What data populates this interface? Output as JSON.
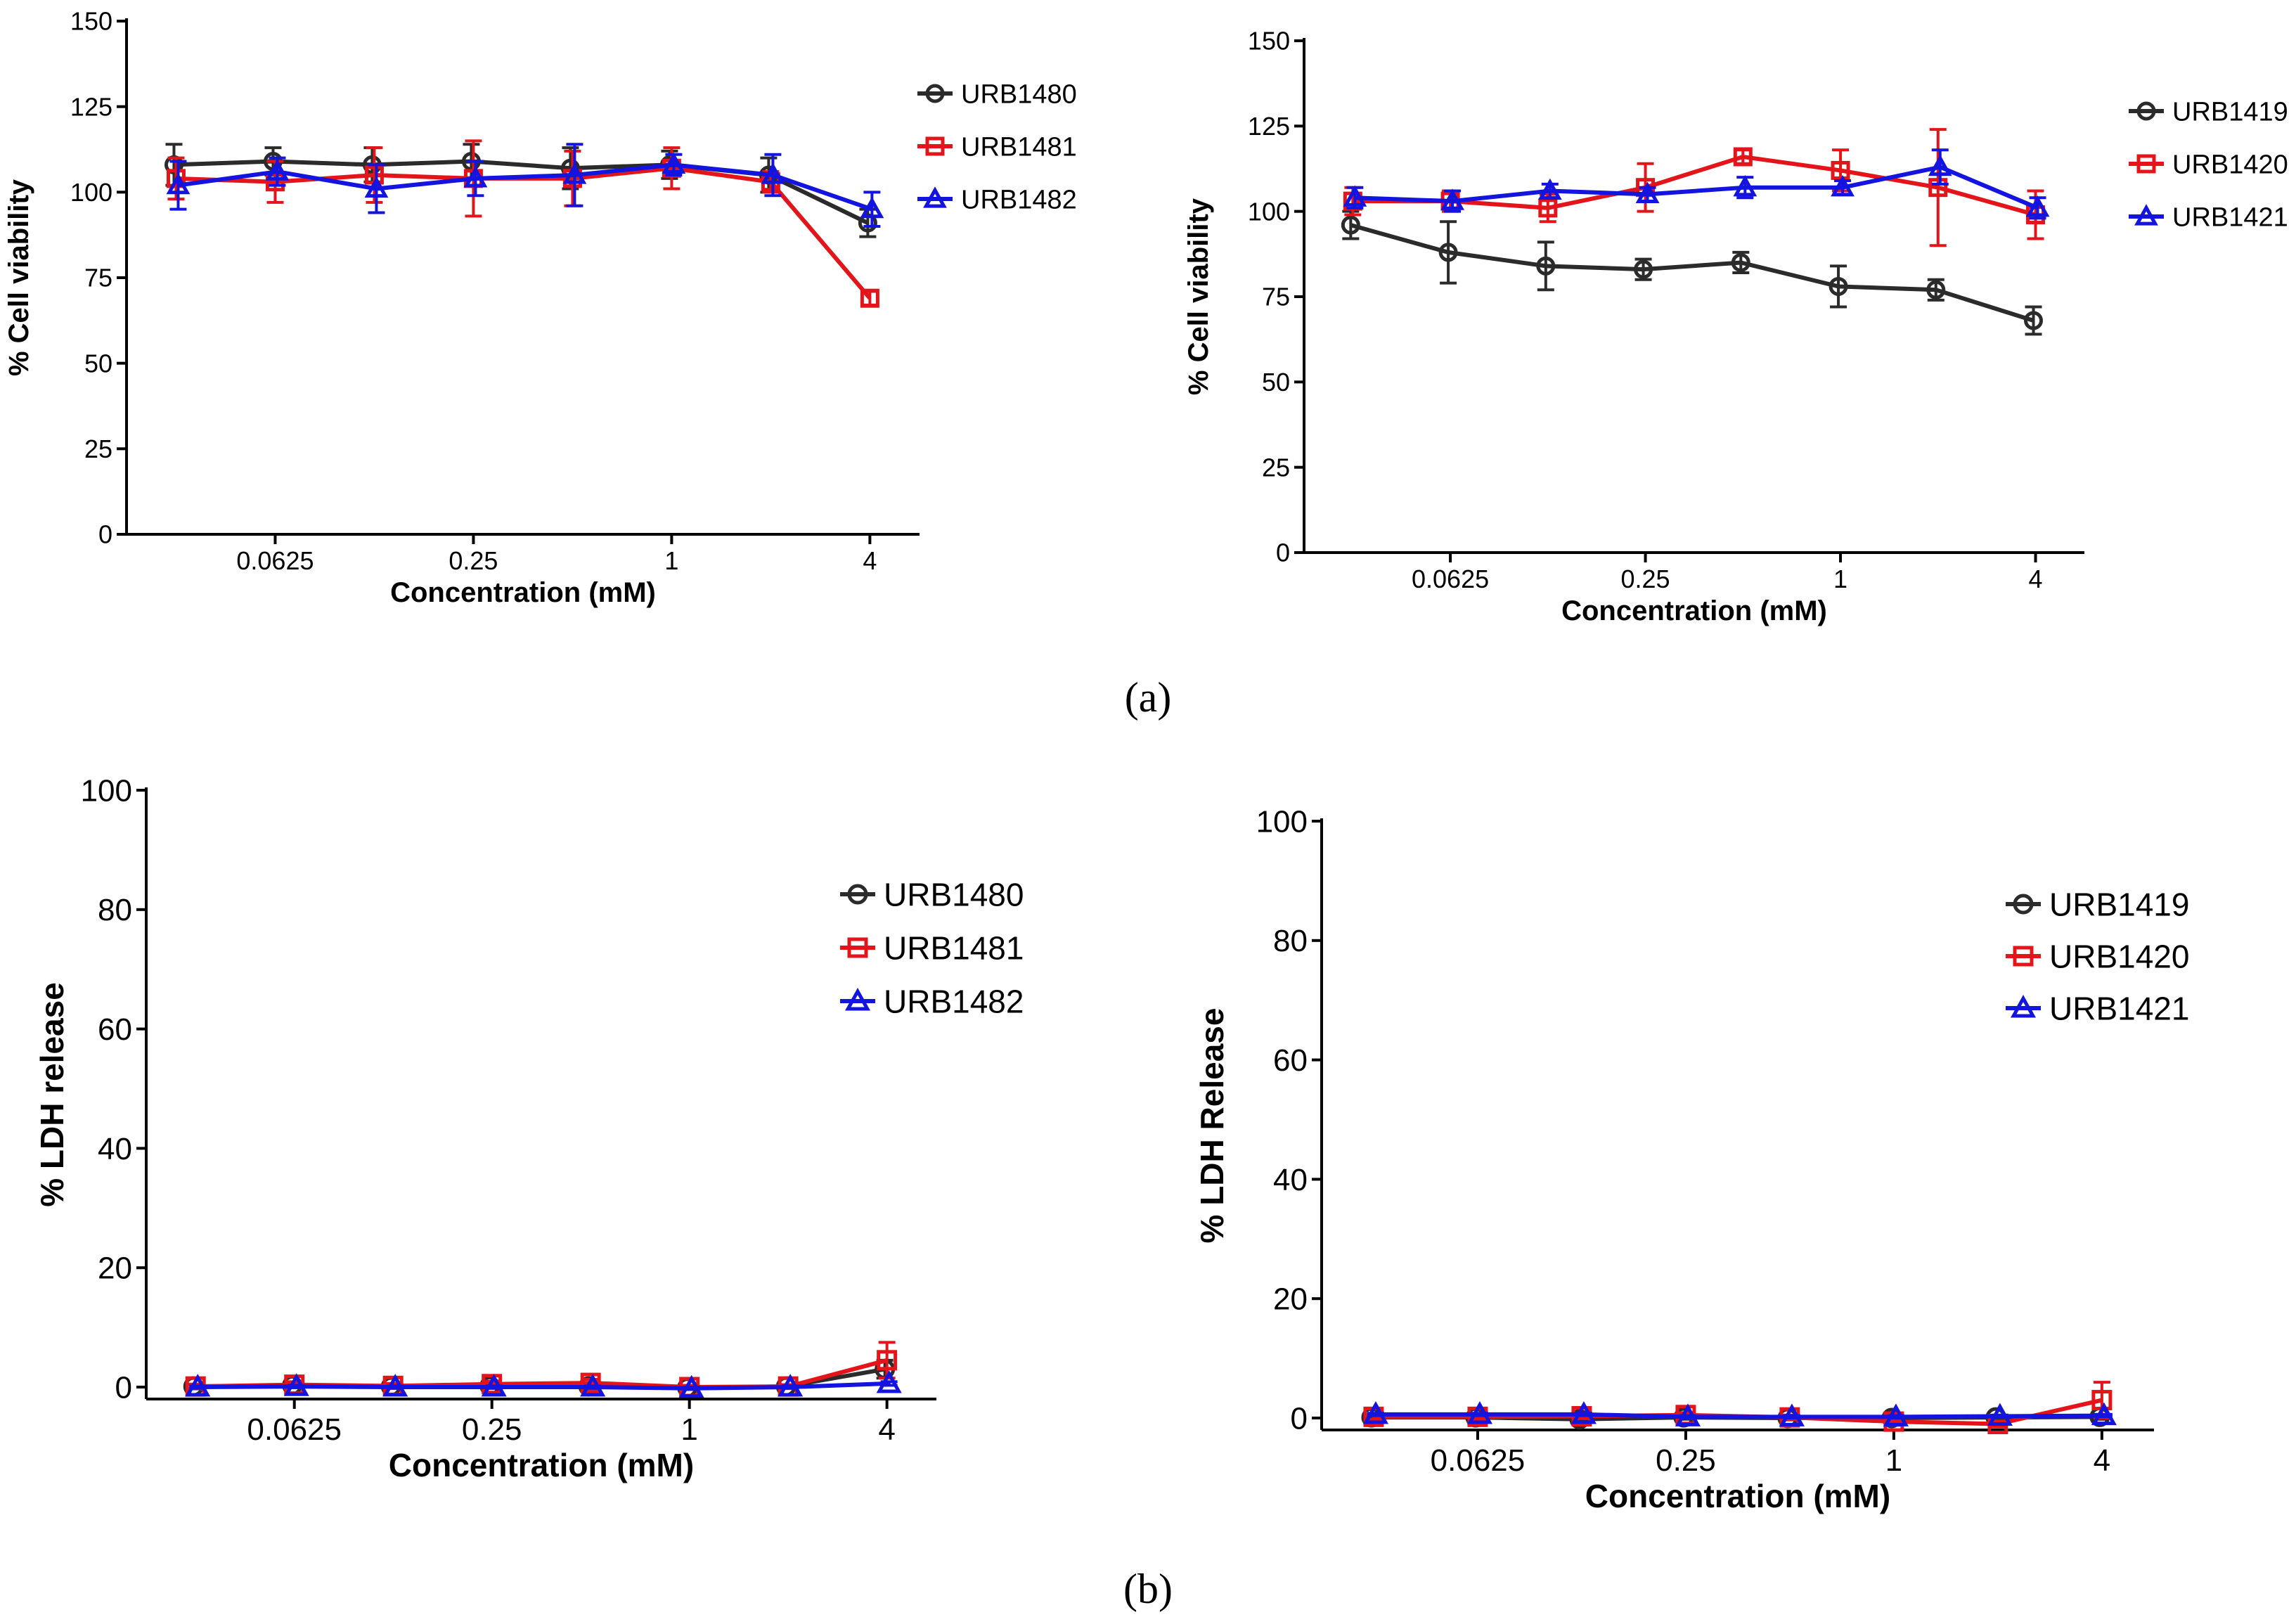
{
  "figure": {
    "panel_a": "(a)",
    "panel_b": "(b)"
  },
  "chart_data": [
    {
      "id": "viab-1480",
      "panel": "a",
      "type": "line",
      "title": "",
      "xlabel": "Concentration (mM)",
      "ylabel": "% Cell viability",
      "xscale": "log2",
      "xlim": [
        0.0221,
        5.66
      ],
      "xticks": [
        0.0625,
        0.25,
        1,
        4
      ],
      "xtick_labels": [
        "0.0625",
        "0.25",
        "1",
        "4"
      ],
      "ylim": [
        0,
        150
      ],
      "yticks": [
        0,
        25,
        50,
        75,
        100,
        125,
        150
      ],
      "ytick_labels": [
        "0",
        "25",
        "50",
        "75",
        "100",
        "125",
        "150"
      ],
      "legend_position": "top-right",
      "series": [
        {
          "name": "URB1480",
          "color": "#2b2b2b",
          "marker": "circle",
          "x": [
            0.03125,
            0.0625,
            0.125,
            0.25,
            0.5,
            1,
            2,
            4
          ],
          "values": [
            108,
            109,
            108,
            109,
            107,
            108,
            105,
            91
          ],
          "errors": [
            6,
            4,
            5,
            5,
            6,
            4,
            5,
            4
          ]
        },
        {
          "name": "URB1481",
          "color": "#e3151a",
          "marker": "square",
          "x": [
            0.03125,
            0.0625,
            0.125,
            0.25,
            0.5,
            1,
            2,
            4
          ],
          "values": [
            104,
            103,
            105,
            104,
            104,
            107,
            103,
            69
          ],
          "errors": [
            6,
            6,
            8,
            11,
            8,
            6,
            3,
            2
          ]
        },
        {
          "name": "URB1482",
          "color": "#1414e0",
          "marker": "triangle",
          "x": [
            0.03125,
            0.0625,
            0.125,
            0.25,
            0.5,
            1,
            2,
            4
          ],
          "values": [
            102,
            106,
            101,
            104,
            105,
            108,
            105,
            95
          ],
          "errors": [
            7,
            4,
            7,
            5,
            9,
            3,
            6,
            5
          ]
        }
      ]
    },
    {
      "id": "viab-1419",
      "panel": "a",
      "type": "line",
      "title": "",
      "xlabel": "Concentration (mM)",
      "ylabel": "% Cell viability",
      "xscale": "log2",
      "xlim": [
        0.0221,
        5.66
      ],
      "xticks": [
        0.0625,
        0.25,
        1,
        4
      ],
      "xtick_labels": [
        "0.0625",
        "0.25",
        "1",
        "4"
      ],
      "ylim": [
        0,
        150
      ],
      "yticks": [
        0,
        25,
        50,
        75,
        100,
        125,
        150
      ],
      "ytick_labels": [
        "0",
        "25",
        "50",
        "75",
        "100",
        "125",
        "150"
      ],
      "legend_position": "top-right",
      "series": [
        {
          "name": "URB1419",
          "color": "#2b2b2b",
          "marker": "circle",
          "x": [
            0.03125,
            0.0625,
            0.125,
            0.25,
            0.5,
            1,
            2,
            4
          ],
          "values": [
            96,
            88,
            84,
            83,
            85,
            78,
            77,
            68
          ],
          "errors": [
            4,
            9,
            7,
            3,
            3,
            6,
            3,
            4
          ]
        },
        {
          "name": "URB1420",
          "color": "#e3151a",
          "marker": "square",
          "x": [
            0.03125,
            0.0625,
            0.125,
            0.25,
            0.5,
            1,
            2,
            4
          ],
          "values": [
            103,
            103,
            101,
            107,
            116,
            112,
            107,
            99
          ],
          "errors": [
            4,
            3,
            4,
            7,
            2,
            6,
            17,
            7
          ]
        },
        {
          "name": "URB1421",
          "color": "#1414e0",
          "marker": "triangle",
          "x": [
            0.03125,
            0.0625,
            0.125,
            0.25,
            0.5,
            1,
            2,
            4
          ],
          "values": [
            104,
            103,
            106,
            105,
            107,
            107,
            113,
            101
          ],
          "errors": [
            3,
            3,
            2,
            2,
            3,
            2,
            5,
            3
          ]
        }
      ]
    },
    {
      "id": "ldh-1480",
      "panel": "b",
      "type": "line",
      "title": "",
      "xlabel": "Concentration (mM)",
      "ylabel": "% LDH release",
      "xscale": "log2",
      "xlim": [
        0.0221,
        5.66
      ],
      "xticks": [
        0.0625,
        0.25,
        1,
        4
      ],
      "xtick_labels": [
        "0.0625",
        "0.25",
        "1",
        "4"
      ],
      "ylim": [
        -2,
        100
      ],
      "yticks": [
        0,
        20,
        40,
        60,
        80,
        100
      ],
      "ytick_labels": [
        "0",
        "20",
        "40",
        "60",
        "80",
        "100"
      ],
      "legend_position": "top-right",
      "series": [
        {
          "name": "URB1480",
          "color": "#2b2b2b",
          "marker": "circle",
          "x": [
            0.03125,
            0.0625,
            0.125,
            0.25,
            0.5,
            1,
            2,
            4
          ],
          "values": [
            0.1,
            0.3,
            0.1,
            0.2,
            0.1,
            -0.1,
            0.1,
            3.0
          ],
          "errors": [
            0.3,
            0.4,
            0.3,
            0.4,
            0.3,
            0.3,
            0.3,
            1.5
          ]
        },
        {
          "name": "URB1481",
          "color": "#e3151a",
          "marker": "square",
          "x": [
            0.03125,
            0.0625,
            0.125,
            0.25,
            0.5,
            1,
            2,
            4
          ],
          "values": [
            0.1,
            0.4,
            0.2,
            0.5,
            0.7,
            0.0,
            0.1,
            4.5
          ],
          "errors": [
            0.4,
            0.5,
            0.4,
            0.5,
            0.6,
            0.3,
            0.3,
            3.0
          ]
        },
        {
          "name": "URB1482",
          "color": "#1414e0",
          "marker": "triangle",
          "x": [
            0.03125,
            0.0625,
            0.125,
            0.25,
            0.5,
            1,
            2,
            4
          ],
          "values": [
            0.0,
            0.1,
            0.0,
            0.0,
            0.0,
            -0.2,
            0.0,
            0.6
          ],
          "errors": [
            0.2,
            0.2,
            0.2,
            0.2,
            0.2,
            0.2,
            0.2,
            0.3
          ]
        }
      ]
    },
    {
      "id": "ldh-1419",
      "panel": "b",
      "type": "line",
      "title": "",
      "xlabel": "Concentration (mM)",
      "ylabel": "% LDH Release",
      "xscale": "log2",
      "xlim": [
        0.0221,
        5.66
      ],
      "xticks": [
        0.0625,
        0.25,
        1,
        4
      ],
      "xtick_labels": [
        "0.0625",
        "0.25",
        "1",
        "4"
      ],
      "ylim": [
        -2,
        100
      ],
      "yticks": [
        0,
        20,
        40,
        60,
        80,
        100
      ],
      "ytick_labels": [
        "0",
        "20",
        "40",
        "60",
        "80",
        "100"
      ],
      "legend_position": "top-right",
      "series": [
        {
          "name": "URB1419",
          "color": "#2b2b2b",
          "marker": "circle",
          "x": [
            0.03125,
            0.0625,
            0.125,
            0.25,
            0.5,
            1,
            2,
            4
          ],
          "values": [
            0.1,
            0.1,
            -0.2,
            0.1,
            0.0,
            0.0,
            0.1,
            0.2
          ],
          "errors": [
            0.3,
            0.3,
            0.3,
            0.3,
            0.3,
            0.3,
            0.3,
            0.4
          ]
        },
        {
          "name": "URB1420",
          "color": "#e3151a",
          "marker": "square",
          "x": [
            0.03125,
            0.0625,
            0.125,
            0.25,
            0.5,
            1,
            2,
            4
          ],
          "values": [
            0.2,
            0.2,
            0.3,
            0.5,
            0.1,
            -0.6,
            -1.0,
            3.0
          ],
          "errors": [
            0.4,
            0.4,
            0.4,
            0.4,
            0.4,
            0.6,
            0.5,
            3.0
          ]
        },
        {
          "name": "URB1421",
          "color": "#1414e0",
          "marker": "triangle",
          "x": [
            0.03125,
            0.0625,
            0.125,
            0.25,
            0.5,
            1,
            2,
            4
          ],
          "values": [
            0.6,
            0.6,
            0.6,
            0.2,
            0.2,
            0.2,
            0.3,
            0.4
          ],
          "errors": [
            0.2,
            0.2,
            0.2,
            0.2,
            0.2,
            0.2,
            0.2,
            0.2
          ]
        }
      ]
    }
  ]
}
